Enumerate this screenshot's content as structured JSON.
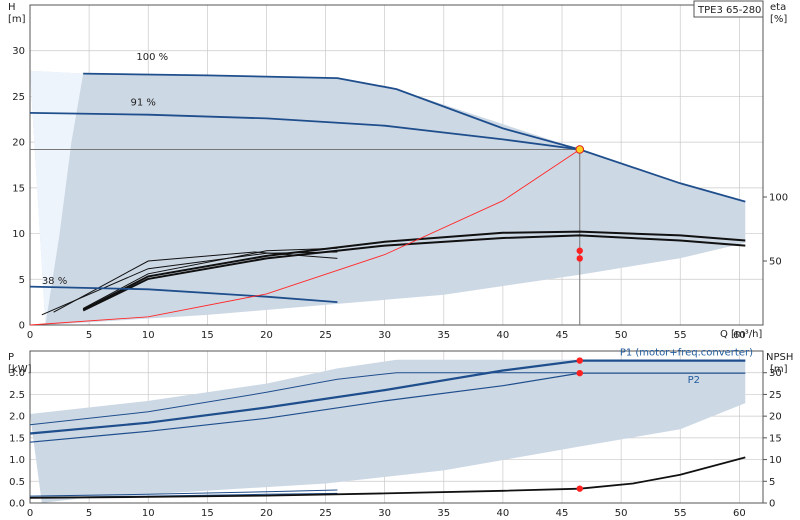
{
  "chart_data": [
    {
      "type": "line",
      "panel": "head-efficiency",
      "model_label": "TPE3 65-280",
      "y_label": "H",
      "y_unit": "[m]",
      "y2_label": "eta",
      "y2_unit": "[%]",
      "x_label": "Q [m³/h]",
      "xlim": [
        0,
        62
      ],
      "ylim": [
        0,
        35
      ],
      "y2lim": [
        0,
        250
      ],
      "x_ticks": [
        0,
        5,
        10,
        15,
        20,
        25,
        30,
        35,
        40,
        45,
        50,
        55,
        60
      ],
      "y_ticks": [
        0,
        5,
        10,
        15,
        20,
        25,
        30
      ],
      "y2_ticks": [
        50,
        100
      ],
      "grid": true,
      "operating_area_head": {
        "upper": [
          [
            0,
            27.8
          ],
          [
            4.5,
            27.5
          ],
          [
            26,
            27.0
          ],
          [
            31,
            25.8
          ],
          [
            46.5,
            19.2
          ],
          [
            55,
            15.5
          ],
          [
            60.5,
            13.5
          ]
        ],
        "lower": [
          [
            60.5,
            9.0
          ],
          [
            55,
            7.3
          ],
          [
            46.5,
            5.5
          ],
          [
            35,
            3.3
          ],
          [
            25,
            2.2
          ],
          [
            15,
            1.1
          ],
          [
            5,
            0.3
          ],
          [
            1.3,
            0
          ]
        ],
        "min_speed": [
          [
            0,
            27.8
          ],
          [
            4.5,
            27.5
          ],
          [
            3.5,
            20
          ],
          [
            2.5,
            10
          ],
          [
            1.3,
            0
          ]
        ]
      },
      "series": [
        {
          "name": "100 %",
          "label_at": [
            9,
            29
          ],
          "color": "#1f4e8c",
          "values": [
            [
              4.5,
              27.5
            ],
            [
              15,
              27.3
            ],
            [
              26,
              27.0
            ],
            [
              31,
              25.8
            ],
            [
              40,
              21.5
            ],
            [
              46.5,
              19.2
            ],
            [
              55,
              15.5
            ],
            [
              60.5,
              13.5
            ]
          ]
        },
        {
          "name": "91 %",
          "label_at": [
            8.5,
            24
          ],
          "color": "#1f4e8c",
          "values": [
            [
              0,
              23.2
            ],
            [
              10,
              23.0
            ],
            [
              20,
              22.6
            ],
            [
              30,
              21.8
            ],
            [
              40,
              20.3
            ],
            [
              46.5,
              19.2
            ]
          ]
        },
        {
          "name": "38 %",
          "label_at": [
            1,
            4.5
          ],
          "color": "#1f4e8c",
          "values": [
            [
              0,
              4.2
            ],
            [
              10,
              3.9
            ],
            [
              20,
              3.1
            ],
            [
              26,
              2.5
            ]
          ]
        },
        {
          "name": "",
          "color": "#ff2a2a",
          "values": [
            [
              0,
              0
            ],
            [
              10,
              0.9
            ],
            [
              20,
              3.4
            ],
            [
              30,
              7.7
            ],
            [
              40,
              13.6
            ],
            [
              46.5,
              19.2
            ]
          ]
        }
      ],
      "efficiency_curves": [
        {
          "width": 2,
          "values": [
            [
              4.5,
              11.3
            ],
            [
              10,
              36
            ],
            [
              20,
              52
            ],
            [
              30,
              62
            ],
            [
              40,
              68
            ],
            [
              46.5,
              70
            ],
            [
              55,
              66
            ],
            [
              60.5,
              62
            ]
          ]
        },
        {
          "width": 2,
          "values": [
            [
              4.5,
              12
            ],
            [
              10,
              38
            ],
            [
              20,
              54
            ],
            [
              30,
              65
            ],
            [
              40,
              72
            ],
            [
              46.5,
              73
            ],
            [
              55,
              70
            ],
            [
              60.5,
              66
            ]
          ]
        },
        {
          "width": 1,
          "values": [
            [
              4.5,
              13
            ],
            [
              10,
              40
            ],
            [
              20,
              58
            ],
            [
              26,
              60
            ]
          ]
        },
        {
          "width": 1,
          "values": [
            [
              2,
              10
            ],
            [
              10,
              50
            ],
            [
              19,
              57
            ],
            [
              26,
              52
            ]
          ]
        },
        {
          "width": 1,
          "values": [
            [
              1,
              8
            ],
            [
              10,
              44
            ],
            [
              20,
              56
            ],
            [
              26,
              57
            ]
          ]
        }
      ],
      "duty_point": {
        "q": 46.5,
        "h": 19.2,
        "eta_points": [
          58,
          52
        ]
      }
    },
    {
      "type": "line",
      "panel": "power-npsh",
      "y_label": "P",
      "y_unit": "[kW]",
      "y2_label": "NPSH",
      "y2_unit": "[m]",
      "xlim": [
        0,
        62
      ],
      "ylim": [
        0,
        3.5
      ],
      "y2lim": [
        0,
        35
      ],
      "y_ticks": [
        0,
        0.5,
        1.0,
        1.5,
        2.0,
        2.5,
        3.0
      ],
      "y_tick_labels": [
        "0.0",
        "0.5",
        "1.0",
        "1.5",
        "2.0",
        "2.5",
        "3.0"
      ],
      "y2_ticks": [
        0,
        5,
        10,
        15,
        20,
        25,
        30
      ],
      "grid": true,
      "operating_area_power": {
        "upper": [
          [
            0,
            2.05
          ],
          [
            10,
            2.35
          ],
          [
            20,
            2.75
          ],
          [
            26,
            3.1
          ],
          [
            31,
            3.3
          ],
          [
            46.5,
            3.3
          ],
          [
            60.5,
            3.3
          ]
        ],
        "lower": [
          [
            60.5,
            2.3
          ],
          [
            55,
            1.7
          ],
          [
            46.5,
            1.3
          ],
          [
            35,
            0.75
          ],
          [
            25,
            0.45
          ],
          [
            10,
            0.2
          ],
          [
            4,
            0.1
          ],
          [
            1,
            0
          ]
        ]
      },
      "series": [
        {
          "name": "P1 (motor+freq.converter)",
          "color": "#1f4e8c",
          "width": 2.2,
          "values": [
            [
              0,
              1.6
            ],
            [
              10,
              1.85
            ],
            [
              20,
              2.2
            ],
            [
              30,
              2.6
            ],
            [
              40,
              3.05
            ],
            [
              46.5,
              3.28
            ],
            [
              60.5,
              3.28
            ]
          ]
        },
        {
          "name": "P2",
          "color": "#1f4e8c",
          "width": 1.2,
          "values": [
            [
              0,
              1.4
            ],
            [
              10,
              1.65
            ],
            [
              20,
              1.95
            ],
            [
              30,
              2.35
            ],
            [
              40,
              2.7
            ],
            [
              46.5,
              2.99
            ],
            [
              60.5,
              2.99
            ]
          ]
        },
        {
          "name": "",
          "color": "#1f4e8c",
          "width": 1,
          "values": [
            [
              0,
              1.8
            ],
            [
              10,
              2.1
            ],
            [
              20,
              2.55
            ],
            [
              26,
              2.85
            ],
            [
              31,
              3.0
            ],
            [
              46.5,
              3.0
            ]
          ]
        },
        {
          "name": "",
          "color": "#1f4e8c",
          "width": 1,
          "values": [
            [
              0,
              0.16
            ],
            [
              10,
              0.2
            ],
            [
              20,
              0.26
            ],
            [
              26,
              0.3
            ]
          ]
        },
        {
          "name": "",
          "color": "#1f4e8c",
          "width": 1,
          "values": [
            [
              0,
              0.12
            ],
            [
              10,
              0.16
            ],
            [
              20,
              0.2
            ],
            [
              26,
              0.22
            ]
          ]
        }
      ],
      "npsh_curve": [
        [
          0,
          1.2
        ],
        [
          10,
          1.4
        ],
        [
          20,
          1.7
        ],
        [
          30,
          2.2
        ],
        [
          40,
          2.8
        ],
        [
          46.5,
          3.3
        ],
        [
          51,
          4.5
        ],
        [
          55,
          6.5
        ],
        [
          60.5,
          10.5
        ]
      ],
      "duty_points": {
        "p1": 3.28,
        "p2": 2.99,
        "npsh": 3.3,
        "q": 46.5
      }
    }
  ]
}
